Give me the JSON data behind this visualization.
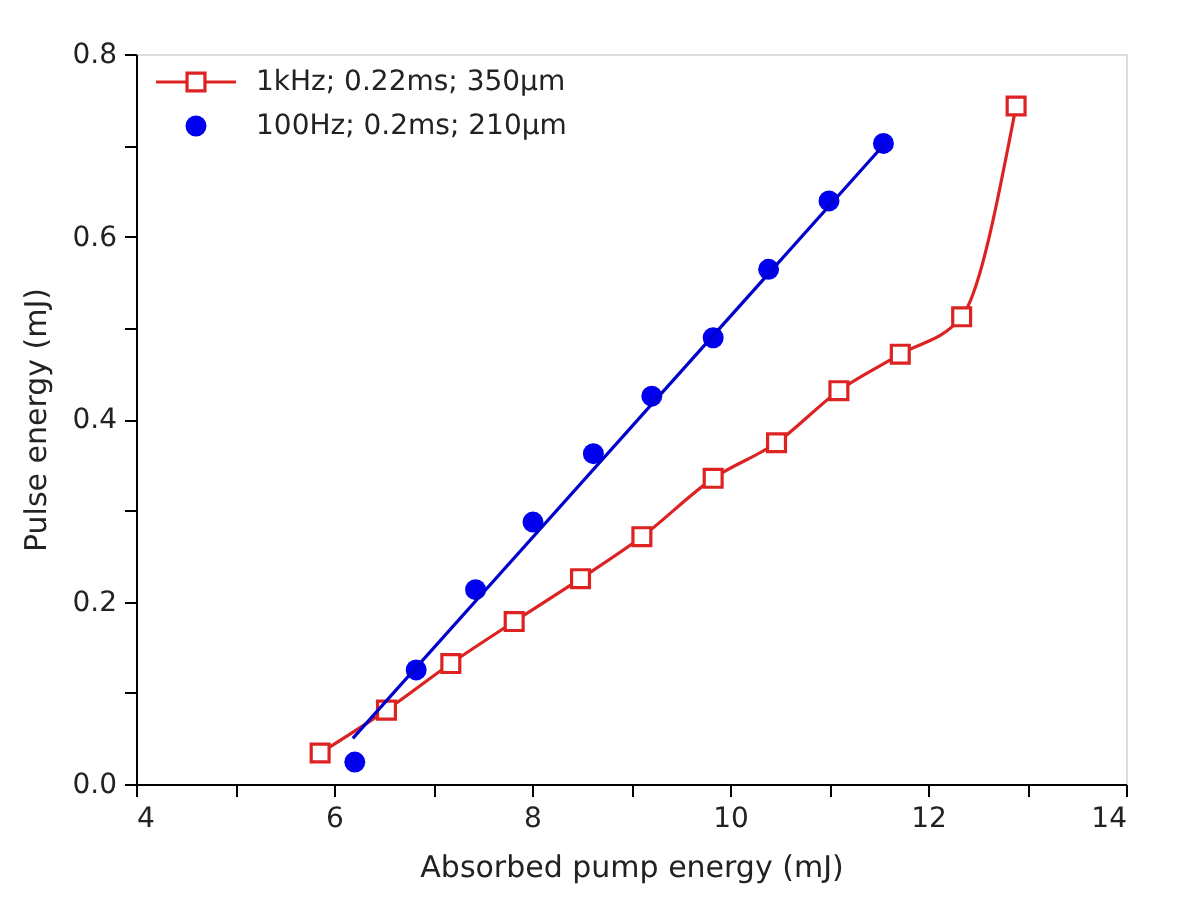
{
  "chart_data": {
    "type": "line",
    "xlabel": "Absorbed pump energy (mJ)",
    "ylabel": "Pulse energy (mJ)",
    "xlim": [
      4,
      14
    ],
    "ylim": [
      0,
      0.8
    ],
    "xticks": [
      4,
      {
        "value": 5,
        "label": null
      },
      6,
      {
        "value": 7,
        "label": null
      },
      8,
      {
        "value": 9,
        "label": null
      },
      10,
      {
        "value": 11,
        "label": null
      },
      12,
      {
        "value": 13,
        "label": null
      },
      14
    ],
    "yticks": [
      {
        "value": 0,
        "label": "0.0"
      },
      {
        "value": 0.1,
        "label": null
      },
      0.2,
      {
        "value": 0.3,
        "label": null
      },
      0.4,
      {
        "value": 0.5,
        "label": null
      },
      0.6,
      {
        "value": 0.7,
        "label": null
      },
      0.8
    ],
    "grid": false,
    "legend": "top left",
    "series": [
      {
        "name": "1kHz; 0.22ms; 350μm",
        "marker": "square",
        "color": "#dd2222",
        "x": [
          5.86,
          6.53,
          7.18,
          7.82,
          8.49,
          9.11,
          9.83,
          10.47,
          11.1,
          11.72,
          12.34,
          12.89
        ],
        "values": [
          0.034,
          0.081,
          0.132,
          0.178,
          0.225,
          0.271,
          0.335,
          0.374,
          0.431,
          0.471,
          0.512,
          0.743
        ]
      },
      {
        "name": "100Hz; 0.2ms; 210μm",
        "type": "scatter",
        "marker": "circle",
        "color": "#0000ee",
        "x": [
          6.21,
          6.83,
          7.43,
          8.01,
          8.62,
          9.21,
          9.83,
          10.39,
          11.0,
          11.55
        ],
        "values": [
          0.024,
          0.125,
          0.213,
          0.287,
          0.362,
          0.425,
          0.489,
          0.564,
          0.639,
          0.702
        ]
      },
      {
        "type": "line",
        "marker": "none",
        "color": "#0000cc",
        "x": [
          6.19,
          11.55
        ],
        "values": [
          0.05,
          0.7
        ]
      }
    ]
  }
}
